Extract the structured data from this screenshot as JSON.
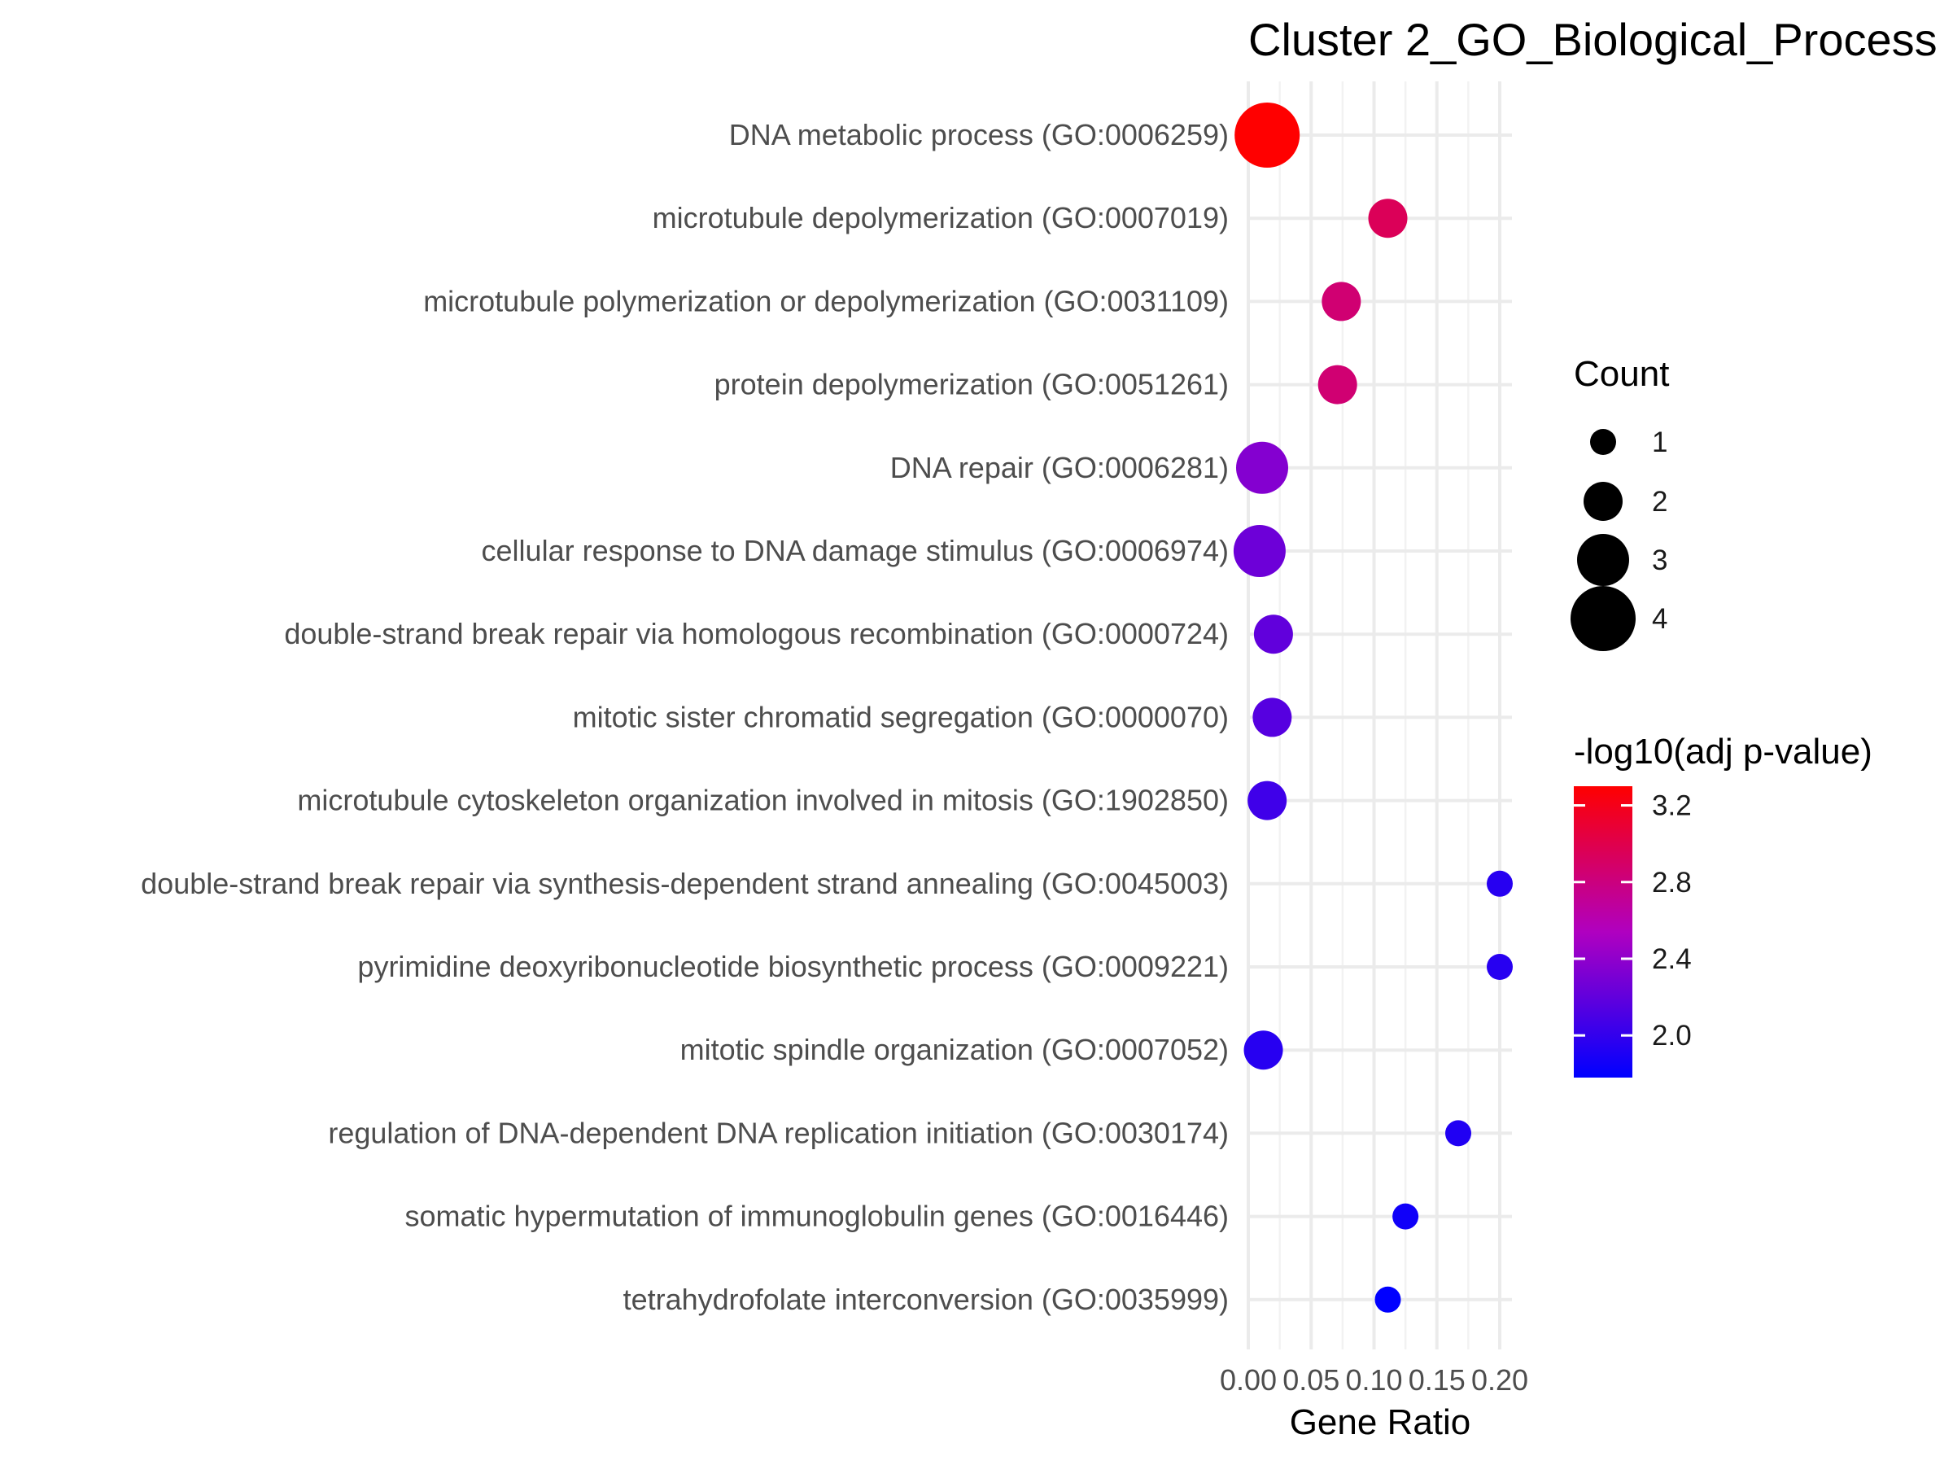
{
  "chart_data": {
    "type": "scatter",
    "title": "Cluster 2_GO_Biological_Process",
    "xlabel": "Gene Ratio",
    "ylabel": "",
    "xlim": [
      0,
      0.2
    ],
    "x_ticks": [
      "0.00",
      "0.05",
      "0.10",
      "0.15",
      "0.20"
    ],
    "grid": true,
    "legend_position": "right",
    "size_legend": {
      "title": "Count",
      "entries": [
        {
          "label": "1",
          "value": 1
        },
        {
          "label": "2",
          "value": 2
        },
        {
          "label": "3",
          "value": 3
        },
        {
          "label": "4",
          "value": 4
        }
      ]
    },
    "color_legend": {
      "title": "-log10(adj p-value)",
      "ticks": [
        {
          "label": "3.2",
          "value": 3.2
        },
        {
          "label": "2.8",
          "value": 2.8
        },
        {
          "label": "2.4",
          "value": 2.4
        },
        {
          "label": "2.0",
          "value": 2.0
        }
      ],
      "range": [
        1.78,
        3.3
      ],
      "low_color": "#0000ff",
      "high_color": "#ff0000"
    },
    "points": [
      {
        "term": "DNA metabolic process (GO:0006259)",
        "gene_ratio": 0.015,
        "count": 4,
        "neg_log10_padj": 3.3
      },
      {
        "term": "microtubule depolymerization (GO:0007019)",
        "gene_ratio": 0.111,
        "count": 2,
        "neg_log10_padj": 2.95
      },
      {
        "term": "microtubule polymerization or depolymerization (GO:0031109)",
        "gene_ratio": 0.074,
        "count": 2,
        "neg_log10_padj": 2.85
      },
      {
        "term": "protein depolymerization (GO:0051261)",
        "gene_ratio": 0.071,
        "count": 2,
        "neg_log10_padj": 2.85
      },
      {
        "term": "DNA repair (GO:0006281)",
        "gene_ratio": 0.011,
        "count": 3,
        "neg_log10_padj": 2.35
      },
      {
        "term": "cellular response to DNA damage stimulus (GO:0006974)",
        "gene_ratio": 0.009,
        "count": 3,
        "neg_log10_padj": 2.25
      },
      {
        "term": "double-strand break repair via homologous recombination (GO:0000724)",
        "gene_ratio": 0.02,
        "count": 2,
        "neg_log10_padj": 2.2
      },
      {
        "term": "mitotic sister chromatid segregation (GO:0000070)",
        "gene_ratio": 0.019,
        "count": 2,
        "neg_log10_padj": 2.15
      },
      {
        "term": "microtubule cytoskeleton organization involved in mitosis (GO:1902850)",
        "gene_ratio": 0.015,
        "count": 2,
        "neg_log10_padj": 2.05
      },
      {
        "term": "double-strand break repair via synthesis-dependent strand annealing (GO:0045003)",
        "gene_ratio": 0.2,
        "count": 1,
        "neg_log10_padj": 1.95
      },
      {
        "term": "pyrimidine deoxyribonucleotide biosynthetic process (GO:0009221)",
        "gene_ratio": 0.2,
        "count": 1,
        "neg_log10_padj": 1.95
      },
      {
        "term": "mitotic spindle organization (GO:0007052)",
        "gene_ratio": 0.012,
        "count": 2,
        "neg_log10_padj": 1.95
      },
      {
        "term": "regulation of DNA-dependent DNA replication initiation (GO:0030174)",
        "gene_ratio": 0.167,
        "count": 1,
        "neg_log10_padj": 1.92
      },
      {
        "term": "somatic hypermutation of immunoglobulin genes (GO:0016446)",
        "gene_ratio": 0.125,
        "count": 1,
        "neg_log10_padj": 1.85
      },
      {
        "term": "tetrahydrofolate interconversion (GO:0035999)",
        "gene_ratio": 0.111,
        "count": 1,
        "neg_log10_padj": 1.78
      }
    ]
  }
}
